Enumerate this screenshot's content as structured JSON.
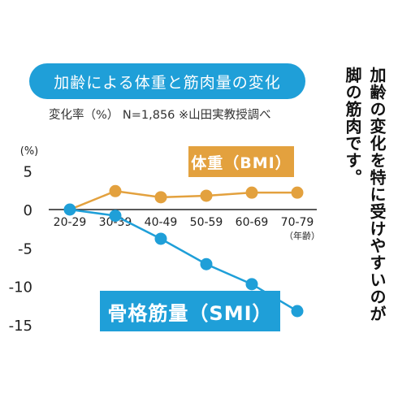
{
  "header": {
    "title": "加齢による体重と筋肉量の変化",
    "subtitle": "変化率（%） N=1,856 ※山田実教授調べ"
  },
  "side_text": {
    "line1": "加齢の変化を特に受けやすいのが",
    "line2": "脚の筋肉です。"
  },
  "colors": {
    "bmi": "#e3a13e",
    "smi": "#1f9fd8",
    "title_bg": "#1f9fd8",
    "axis": "#222222"
  },
  "chart_data": {
    "type": "line",
    "categories": [
      "20-29",
      "30-39",
      "40-49",
      "50-59",
      "60-69",
      "70-79"
    ],
    "ylabel": "(%)",
    "xlabel": "（年齢）",
    "ylim": [
      -15,
      5
    ],
    "yticks": [
      "5",
      "0",
      "-5",
      "-10",
      "-15"
    ],
    "ytick_values": [
      5,
      0,
      -5,
      -10,
      -15
    ],
    "grid": false,
    "series": [
      {
        "name": "体重（BMI）",
        "values": [
          0,
          2.4,
          1.6,
          1.8,
          2.2,
          2.2
        ]
      },
      {
        "name": "骨格筋量（SMI）",
        "values": [
          0,
          -0.8,
          -3.8,
          -7.1,
          -9.7,
          -13.2
        ]
      }
    ]
  }
}
